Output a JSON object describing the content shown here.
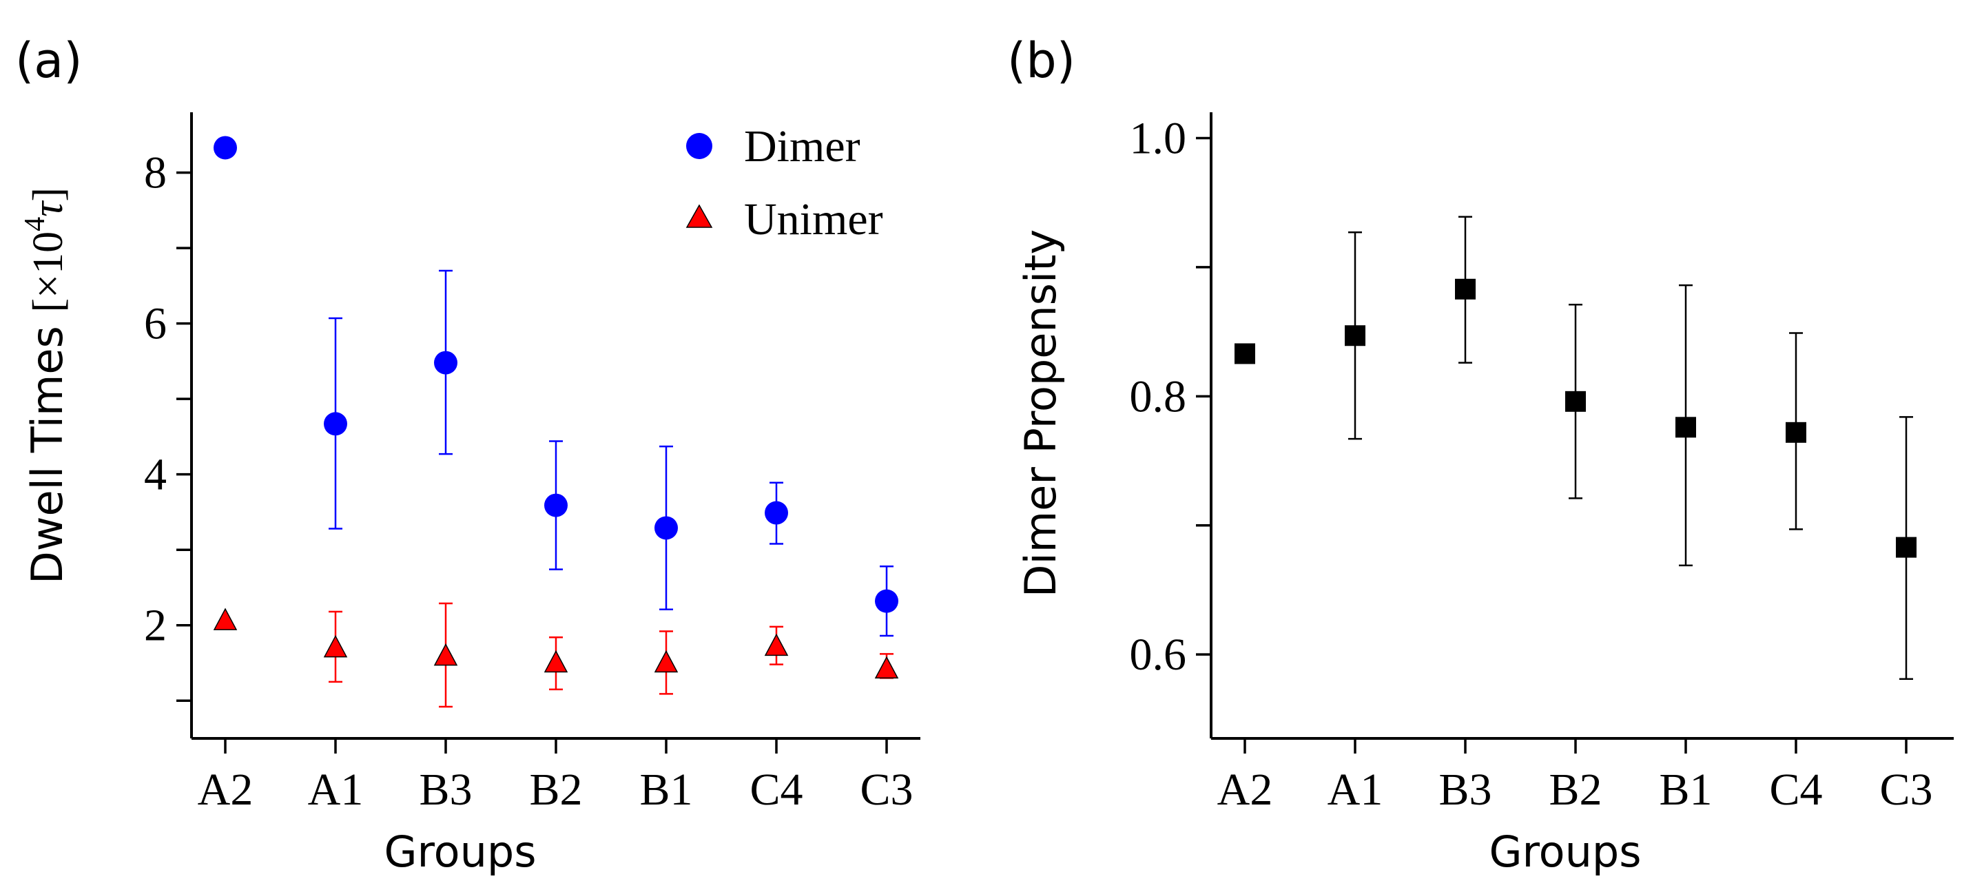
{
  "chart_data": [
    {
      "panel_label": "(a)",
      "type": "scatter",
      "categories": [
        "A2",
        "A1",
        "B3",
        "B2",
        "B1",
        "C4",
        "C3"
      ],
      "xlabel": "Groups",
      "ylabel_main": "Dwell Times ",
      "ylabel_unit": "[×10",
      "ylabel_exp": "4",
      "ylabel_tau": "τ",
      "ylabel_close": "]",
      "ylim": [
        0.5,
        8.8
      ],
      "yticks": [
        1,
        2,
        3,
        4,
        5,
        6,
        7,
        8
      ],
      "ytick_labels": [
        "",
        "2",
        "",
        "4",
        "",
        "6",
        "",
        "8"
      ],
      "legend_position": "top-right",
      "series": [
        {
          "name": "Dimer",
          "marker": "circle",
          "color": "#0000ff",
          "values": [
            8.33,
            4.67,
            5.48,
            3.59,
            3.29,
            3.49,
            2.32
          ],
          "err_low": [
            null,
            3.28,
            4.27,
            2.74,
            2.21,
            3.08,
            1.86
          ],
          "err_high": [
            null,
            6.07,
            6.7,
            4.44,
            4.37,
            3.89,
            2.78
          ]
        },
        {
          "name": "Unimer",
          "marker": "triangle",
          "color": "#ff0000",
          "values": [
            2.06,
            1.7,
            1.59,
            1.5,
            1.5,
            1.72,
            1.42
          ],
          "err_low": [
            null,
            1.25,
            0.92,
            1.15,
            1.09,
            1.48,
            1.3
          ],
          "err_high": [
            null,
            2.18,
            2.29,
            1.84,
            1.92,
            1.98,
            1.62
          ]
        }
      ]
    },
    {
      "panel_label": "(b)",
      "type": "scatter",
      "categories": [
        "A2",
        "A1",
        "B3",
        "B2",
        "B1",
        "C4",
        "C3"
      ],
      "xlabel": "Groups",
      "ylabel": "Dimer Propensity",
      "ylim": [
        0.535,
        1.02
      ],
      "yticks": [
        0.6,
        0.7,
        0.8,
        0.9,
        1.0
      ],
      "ytick_labels": [
        "0.6",
        "",
        "0.8",
        "",
        "1.0"
      ],
      "series": [
        {
          "name": "Dimer Propensity",
          "marker": "square",
          "color": "#000000",
          "values": [
            0.833,
            0.847,
            0.883,
            0.796,
            0.776,
            0.772,
            0.683
          ],
          "err_low": [
            null,
            0.767,
            0.826,
            0.721,
            0.669,
            0.697,
            0.581
          ],
          "err_high": [
            null,
            0.927,
            0.939,
            0.871,
            0.886,
            0.849,
            0.784
          ]
        }
      ]
    }
  ]
}
